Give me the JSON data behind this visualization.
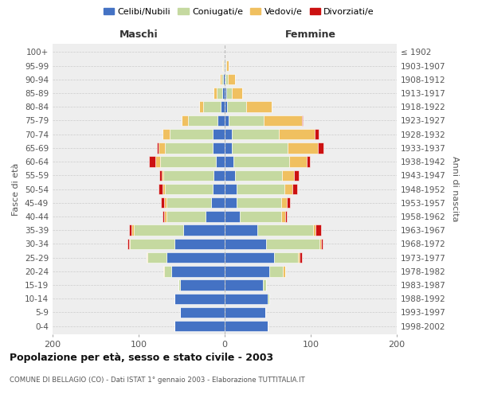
{
  "age_groups": [
    "0-4",
    "5-9",
    "10-14",
    "15-19",
    "20-24",
    "25-29",
    "30-34",
    "35-39",
    "40-44",
    "45-49",
    "50-54",
    "55-59",
    "60-64",
    "65-69",
    "70-74",
    "75-79",
    "80-84",
    "85-89",
    "90-94",
    "95-99",
    "100+"
  ],
  "birth_years": [
    "1998-2002",
    "1993-1997",
    "1988-1992",
    "1983-1987",
    "1978-1982",
    "1973-1977",
    "1968-1972",
    "1963-1967",
    "1958-1962",
    "1953-1957",
    "1948-1952",
    "1943-1947",
    "1938-1942",
    "1933-1937",
    "1928-1932",
    "1923-1927",
    "1918-1922",
    "1913-1917",
    "1908-1912",
    "1903-1907",
    "≤ 1902"
  ],
  "maschi_celibi": [
    58,
    52,
    58,
    52,
    62,
    68,
    58,
    48,
    22,
    16,
    14,
    13,
    10,
    14,
    14,
    8,
    5,
    3,
    2,
    1,
    0
  ],
  "maschi_coniugati": [
    0,
    0,
    0,
    2,
    8,
    22,
    52,
    58,
    46,
    52,
    55,
    58,
    65,
    55,
    50,
    35,
    20,
    6,
    2,
    1,
    0
  ],
  "maschi_vedovi": [
    0,
    0,
    0,
    0,
    1,
    1,
    1,
    2,
    2,
    2,
    3,
    2,
    6,
    8,
    8,
    7,
    5,
    4,
    2,
    1,
    0
  ],
  "maschi_divorziati": [
    0,
    0,
    0,
    0,
    0,
    0,
    2,
    3,
    2,
    4,
    5,
    3,
    7,
    2,
    0,
    0,
    0,
    0,
    0,
    0,
    0
  ],
  "femmine_celibi": [
    50,
    47,
    50,
    44,
    52,
    57,
    48,
    38,
    18,
    14,
    14,
    12,
    10,
    8,
    8,
    5,
    3,
    2,
    1,
    1,
    0
  ],
  "femmine_coniugati": [
    0,
    0,
    2,
    4,
    16,
    28,
    62,
    65,
    48,
    52,
    55,
    55,
    65,
    65,
    55,
    40,
    22,
    6,
    3,
    1,
    0
  ],
  "femmine_vedovi": [
    0,
    0,
    0,
    0,
    2,
    2,
    2,
    3,
    4,
    6,
    10,
    14,
    20,
    35,
    42,
    45,
    30,
    12,
    8,
    3,
    0
  ],
  "femmine_divorziati": [
    0,
    0,
    0,
    0,
    0,
    3,
    2,
    6,
    2,
    4,
    5,
    5,
    4,
    7,
    4,
    1,
    0,
    0,
    0,
    0,
    0
  ],
  "color_celibi": "#4472c4",
  "color_coniugati": "#c5d9a0",
  "color_vedovi": "#f0c060",
  "color_divorziati": "#cc1111",
  "title": "Popolazione per età, sesso e stato civile - 2003",
  "subtitle": "COMUNE DI BELLAGIO (CO) - Dati ISTAT 1° gennaio 2003 - Elaborazione TUTTITALIA.IT",
  "ylabel": "Fasce di età",
  "ylabel_right": "Anni di nascita",
  "xlabel_left": "Maschi",
  "xlabel_right": "Femmine",
  "xlim": 200,
  "background_color": "#ffffff"
}
